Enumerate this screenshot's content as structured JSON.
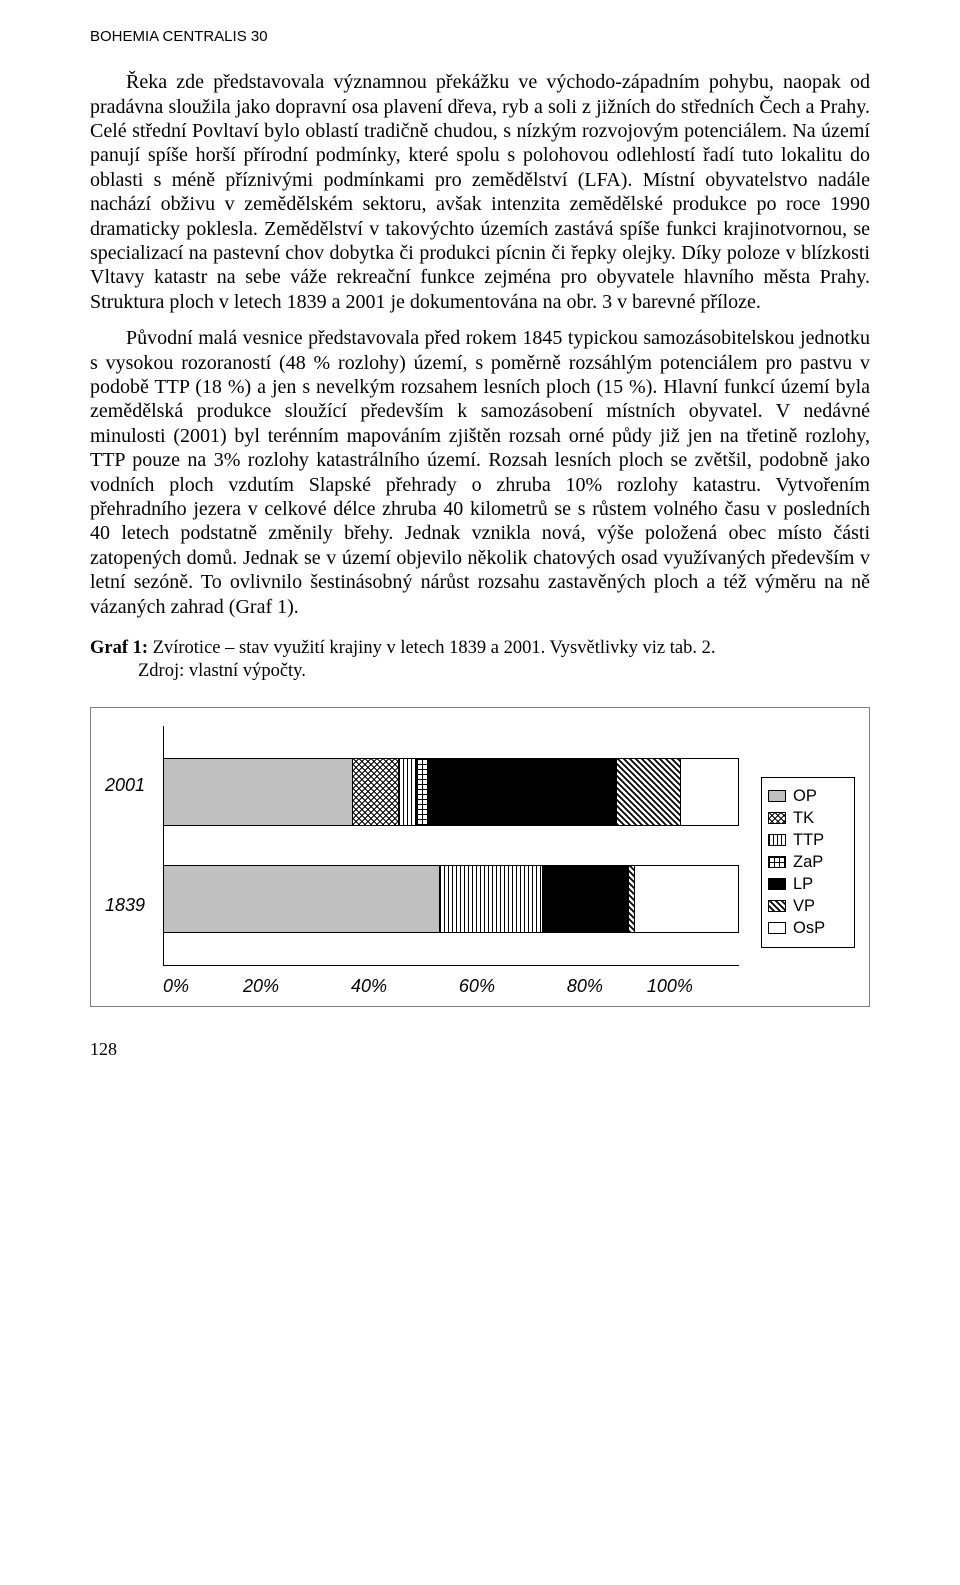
{
  "header": "BOHEMIA CENTRALIS 30",
  "para1": "Řeka zde představovala významnou překážku ve východo-západním pohybu, naopak od pradávna sloužila jako dopravní osa plavení dřeva, ryb a soli z jižních do středních Čech a Prahy. Celé střední Povltaví bylo oblastí tradičně chudou, s nízkým rozvojovým potenciálem. Na území panují spíše horší přírodní podmínky, které spolu s polohovou odlehlostí řadí tuto lokalitu do oblasti s méně příznivými podmínkami pro zemědělství (LFA). Místní obyvatelstvo nadále nachází obživu v zemědělském sektoru, avšak intenzita zemědělské produkce po roce 1990 dramaticky poklesla. Zemědělství v takovýchto územích zastává spíše funkci krajinotvornou, se specializací na pastevní chov dobytka či produkci pícnin či řepky olejky. Díky poloze v blízkosti Vltavy katastr na sebe váže rekreační funkce zejména pro obyvatele hlavního města Prahy. Struktura ploch v letech 1839 a 2001 je dokumentována na obr. 3 v barevné příloze.",
  "para2": "Původní malá vesnice představovala před rokem 1845 typickou samozásobitelskou jednotku s vysokou rozoraností (48 % rozlohy) území, s poměrně rozsáhlým potenciálem pro pastvu v podobě TTP (18 %) a jen s nevelkým rozsahem lesních ploch (15 %). Hlavní funkcí území byla zemědělská produkce sloužící především k samozásobení místních obyvatel. V nedávné minulosti (2001) byl terénním mapováním zjištěn rozsah orné půdy již jen na třetině rozlohy, TTP pouze na 3% rozlohy katastrálního území. Rozsah lesních ploch se zvětšil, podobně jako vodních ploch vzdutím Slapské přehrady o zhruba 10% rozlohy katastru. Vytvořením přehradního jezera v celkové délce zhruba 40 kilometrů se s růstem volného času v posledních 40 letech podstatně změnily břehy. Jednak vznikla nová, výše položená obec místo části zatopených domů. Jednak se v území objevilo několik chatových osad využívaných především v letní sezóně. To ovlivnilo šestinásobný nárůst rozsahu zastavěných ploch a též výměru na ně vázaných zahrad (Graf 1).",
  "caption_bold": "Graf 1:",
  "caption_rest": " Zvírotice – stav využití krajiny v letech 1839 a 2001. Vysvětlivky viz tab. 2.",
  "caption_line2": "Zdroj: vlastní výpočty.",
  "chart": {
    "type": "stacked-bar-horizontal",
    "categories": [
      "2001",
      "1839"
    ],
    "legend": [
      "OP",
      "TK",
      "TTP",
      "ZaP",
      "LP",
      "VP",
      "OsP"
    ],
    "legend_fill": [
      "fill-op",
      "fill-tk",
      "fill-ttp",
      "fill-zap",
      "fill-lp",
      "fill-vp",
      "fill-osp"
    ],
    "series_2001": [
      {
        "label": "OP",
        "pct": 33,
        "fill": "fill-op"
      },
      {
        "label": "TK",
        "pct": 8,
        "fill": "fill-tk"
      },
      {
        "label": "TTP",
        "pct": 3,
        "fill": "fill-ttp"
      },
      {
        "label": "ZaP",
        "pct": 2,
        "fill": "fill-zap"
      },
      {
        "label": "LP",
        "pct": 33,
        "fill": "fill-lp"
      },
      {
        "label": "VP",
        "pct": 11,
        "fill": "fill-vp"
      },
      {
        "label": "OsP",
        "pct": 10,
        "fill": "fill-osp"
      }
    ],
    "series_1839": [
      {
        "label": "OP",
        "pct": 48,
        "fill": "fill-op"
      },
      {
        "label": "TK",
        "pct": 0,
        "fill": "fill-tk"
      },
      {
        "label": "TTP",
        "pct": 18,
        "fill": "fill-ttp"
      },
      {
        "label": "ZaP",
        "pct": 0,
        "fill": "fill-zap"
      },
      {
        "label": "LP",
        "pct": 15,
        "fill": "fill-lp"
      },
      {
        "label": "VP",
        "pct": 1,
        "fill": "fill-vp"
      },
      {
        "label": "OsP",
        "pct": 18,
        "fill": "fill-osp"
      }
    ],
    "xticks": [
      "0%",
      "20%",
      "40%",
      "60%",
      "80%",
      "100%"
    ],
    "colors": {
      "border": "#7f7f7f",
      "axis": "#000000",
      "op": "#c0c0c0",
      "lp": "#000000",
      "osp": "#ffffff"
    },
    "font": {
      "family": "Arial",
      "style": "italic",
      "size_pt": 13
    }
  },
  "page_number": "128"
}
